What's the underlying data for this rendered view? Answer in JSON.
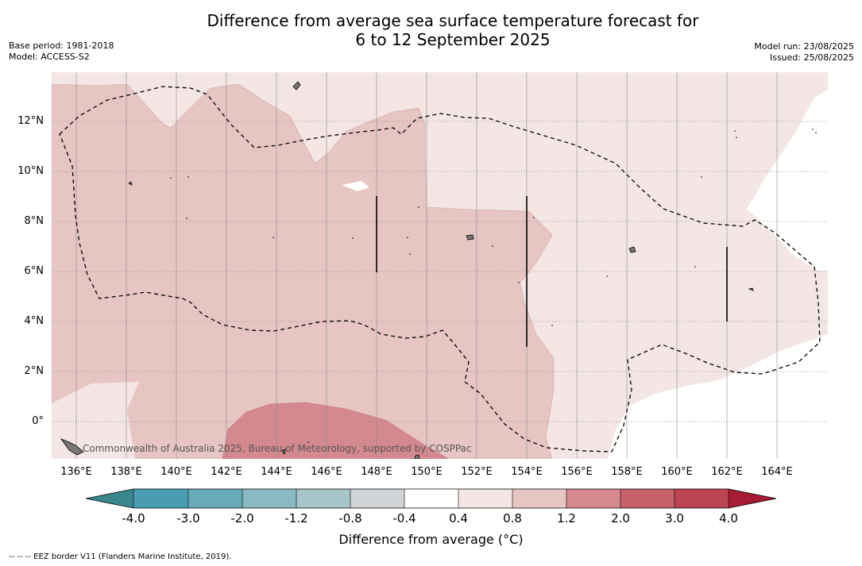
{
  "title_line1": "Difference from average sea surface temperature forecast for",
  "title_line2": "6 to 12 September 2025",
  "meta_left": [
    "Base period: 1981-2018",
    "Model: ACCESS-S2"
  ],
  "meta_right": [
    "Model run: 23/08/2025",
    "Issued: 25/08/2025"
  ],
  "map": {
    "x_ticks": [
      "136°E",
      "138°E",
      "140°E",
      "142°E",
      "144°E",
      "146°E",
      "148°E",
      "150°E",
      "152°E",
      "154°E",
      "156°E",
      "158°E",
      "160°E",
      "162°E",
      "164°E"
    ],
    "y_ticks": [
      "12°N",
      "10°N",
      "8°N",
      "6°N",
      "4°N",
      "2°N",
      "0°"
    ],
    "credit": "Commonwealth of Australia 2025, Bureau of Meteorology, supported by COSPPac",
    "extent": {
      "lon": [
        135,
        166
      ],
      "lat": [
        -1.5,
        14
      ]
    }
  },
  "colorbar": {
    "label": "Difference from average (°C)",
    "ticks": [
      "-4.0",
      "-3.0",
      "-2.0",
      "-1.2",
      "-0.8",
      "-0.4",
      "0.4",
      "0.8",
      "1.2",
      "2.0",
      "3.0",
      "4.0"
    ],
    "colors": [
      "#4a9db0",
      "#6aabba",
      "#8ab8c3",
      "#a8c5ca",
      "#d1d4d6",
      "#ffffff",
      "#f4e6e5",
      "#e6c5c2",
      "#d4898f",
      "#c6616c",
      "#bc4454"
    ],
    "under_color": "#3b878f",
    "over_color": "#a81b34"
  },
  "footnote": "-- -- -- EEZ border V11 (Flanders Marine Institute, 2019)."
}
